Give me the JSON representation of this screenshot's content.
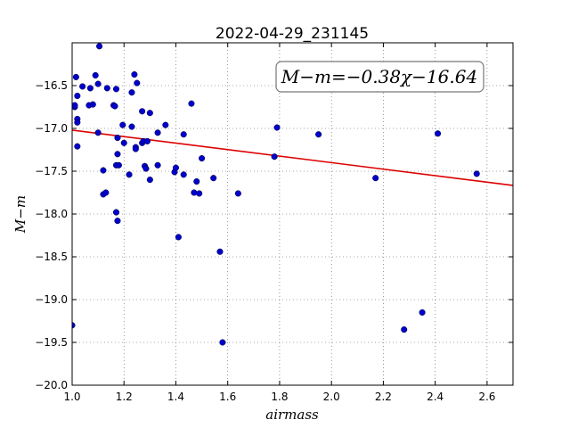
{
  "chart_data": {
    "type": "scatter",
    "title": "2022-04-29_231145",
    "xlabel": "airmass",
    "ylabel": "M−m",
    "xlim": [
      1.0,
      2.7
    ],
    "ylim": [
      -20.0,
      -16.0
    ],
    "y_inverted": true,
    "grid": true,
    "xticks": [
      1.0,
      1.2,
      1.4,
      1.6,
      1.8,
      2.0,
      2.2,
      2.4,
      2.6
    ],
    "xtick_labels": [
      "1.0",
      "1.2",
      "1.4",
      "1.6",
      "1.8",
      "2.0",
      "2.2",
      "2.4",
      "2.6"
    ],
    "yticks": [
      -16.5,
      -17.0,
      -17.5,
      -18.0,
      -18.5,
      -19.0,
      -19.5,
      -20.0
    ],
    "ytick_labels": [
      "−16.5",
      "−17.0",
      "−17.5",
      "−18.0",
      "−18.5",
      "−19.0",
      "−19.5",
      "−20.0"
    ],
    "annotation": "M−m=−0.38χ−16.64",
    "colors": {
      "points": "#0000cc",
      "fit_line": "#dd0000"
    },
    "fit": {
      "slope": -0.38,
      "intercept": -16.64
    },
    "points": [
      {
        "x": 1.0,
        "y": -19.3
      },
      {
        "x": 1.01,
        "y": -16.75
      },
      {
        "x": 1.01,
        "y": -16.73
      },
      {
        "x": 1.015,
        "y": -16.4
      },
      {
        "x": 1.02,
        "y": -16.62
      },
      {
        "x": 1.02,
        "y": -16.89
      },
      {
        "x": 1.02,
        "y": -16.93
      },
      {
        "x": 1.02,
        "y": -17.21
      },
      {
        "x": 1.04,
        "y": -16.51
      },
      {
        "x": 1.065,
        "y": -16.73
      },
      {
        "x": 1.07,
        "y": -16.53
      },
      {
        "x": 1.08,
        "y": -16.72
      },
      {
        "x": 1.09,
        "y": -16.38
      },
      {
        "x": 1.1,
        "y": -16.48
      },
      {
        "x": 1.1,
        "y": -17.05
      },
      {
        "x": 1.105,
        "y": -16.04
      },
      {
        "x": 1.12,
        "y": -17.49
      },
      {
        "x": 1.12,
        "y": -17.77
      },
      {
        "x": 1.13,
        "y": -17.75
      },
      {
        "x": 1.135,
        "y": -16.53
      },
      {
        "x": 1.16,
        "y": -16.73
      },
      {
        "x": 1.165,
        "y": -16.74
      },
      {
        "x": 1.17,
        "y": -16.54
      },
      {
        "x": 1.17,
        "y": -17.43
      },
      {
        "x": 1.17,
        "y": -17.98
      },
      {
        "x": 1.175,
        "y": -18.08
      },
      {
        "x": 1.175,
        "y": -17.11
      },
      {
        "x": 1.175,
        "y": -17.3
      },
      {
        "x": 1.18,
        "y": -17.43
      },
      {
        "x": 1.195,
        "y": -16.96
      },
      {
        "x": 1.2,
        "y": -17.17
      },
      {
        "x": 1.22,
        "y": -17.54
      },
      {
        "x": 1.23,
        "y": -16.98
      },
      {
        "x": 1.23,
        "y": -16.58
      },
      {
        "x": 1.24,
        "y": -16.37
      },
      {
        "x": 1.245,
        "y": -17.22
      },
      {
        "x": 1.245,
        "y": -17.24
      },
      {
        "x": 1.25,
        "y": -16.47
      },
      {
        "x": 1.27,
        "y": -16.8
      },
      {
        "x": 1.27,
        "y": -17.17
      },
      {
        "x": 1.275,
        "y": -17.15
      },
      {
        "x": 1.28,
        "y": -17.44
      },
      {
        "x": 1.285,
        "y": -17.47
      },
      {
        "x": 1.29,
        "y": -17.15
      },
      {
        "x": 1.3,
        "y": -16.82
      },
      {
        "x": 1.3,
        "y": -17.6
      },
      {
        "x": 1.33,
        "y": -17.05
      },
      {
        "x": 1.33,
        "y": -17.43
      },
      {
        "x": 1.36,
        "y": -16.96
      },
      {
        "x": 1.395,
        "y": -17.51
      },
      {
        "x": 1.4,
        "y": -17.46
      },
      {
        "x": 1.41,
        "y": -18.27
      },
      {
        "x": 1.43,
        "y": -17.07
      },
      {
        "x": 1.43,
        "y": -17.54
      },
      {
        "x": 1.46,
        "y": -16.71
      },
      {
        "x": 1.47,
        "y": -17.75
      },
      {
        "x": 1.48,
        "y": -17.62
      },
      {
        "x": 1.49,
        "y": -17.76
      },
      {
        "x": 1.5,
        "y": -17.35
      },
      {
        "x": 1.545,
        "y": -17.58
      },
      {
        "x": 1.57,
        "y": -18.44
      },
      {
        "x": 1.58,
        "y": -19.5
      },
      {
        "x": 1.64,
        "y": -17.76
      },
      {
        "x": 1.78,
        "y": -17.33
      },
      {
        "x": 1.79,
        "y": -16.99
      },
      {
        "x": 1.95,
        "y": -17.07
      },
      {
        "x": 2.17,
        "y": -17.58
      },
      {
        "x": 2.28,
        "y": -19.35
      },
      {
        "x": 2.35,
        "y": -19.15
      },
      {
        "x": 2.41,
        "y": -17.06
      },
      {
        "x": 2.56,
        "y": -17.53
      }
    ]
  }
}
